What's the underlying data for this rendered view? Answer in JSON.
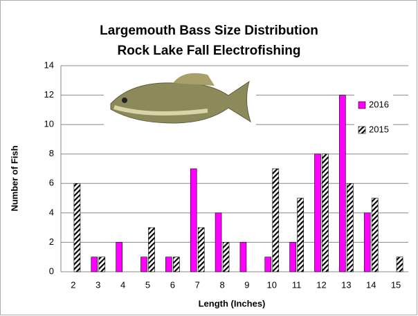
{
  "chart_data": {
    "type": "bar",
    "title": "Largemouth Bass Size Distribution",
    "subtitle": "Rock Lake Fall Electrofishing",
    "x_label": "Length (Inches)",
    "y_label": "Number of Fish",
    "categories": [
      "2",
      "3",
      "4",
      "5",
      "6",
      "7",
      "8",
      "9",
      "10",
      "11",
      "12",
      "13",
      "14",
      "15"
    ],
    "series": [
      {
        "name": "2016",
        "color": "#ff00ff",
        "hatch": false,
        "values": [
          0,
          1,
          2,
          1,
          1,
          7,
          4,
          2,
          1,
          2,
          8,
          12,
          4,
          0
        ]
      },
      {
        "name": "2015",
        "color": "#000000",
        "hatch": true,
        "values": [
          6,
          1,
          0,
          3,
          1,
          3,
          2,
          0,
          7,
          5,
          8,
          6,
          5,
          1
        ]
      }
    ],
    "ylim": [
      0,
      14
    ],
    "yticks": [
      0,
      2,
      4,
      6,
      8,
      10,
      12,
      14
    ],
    "grid": true,
    "legend": "right"
  }
}
